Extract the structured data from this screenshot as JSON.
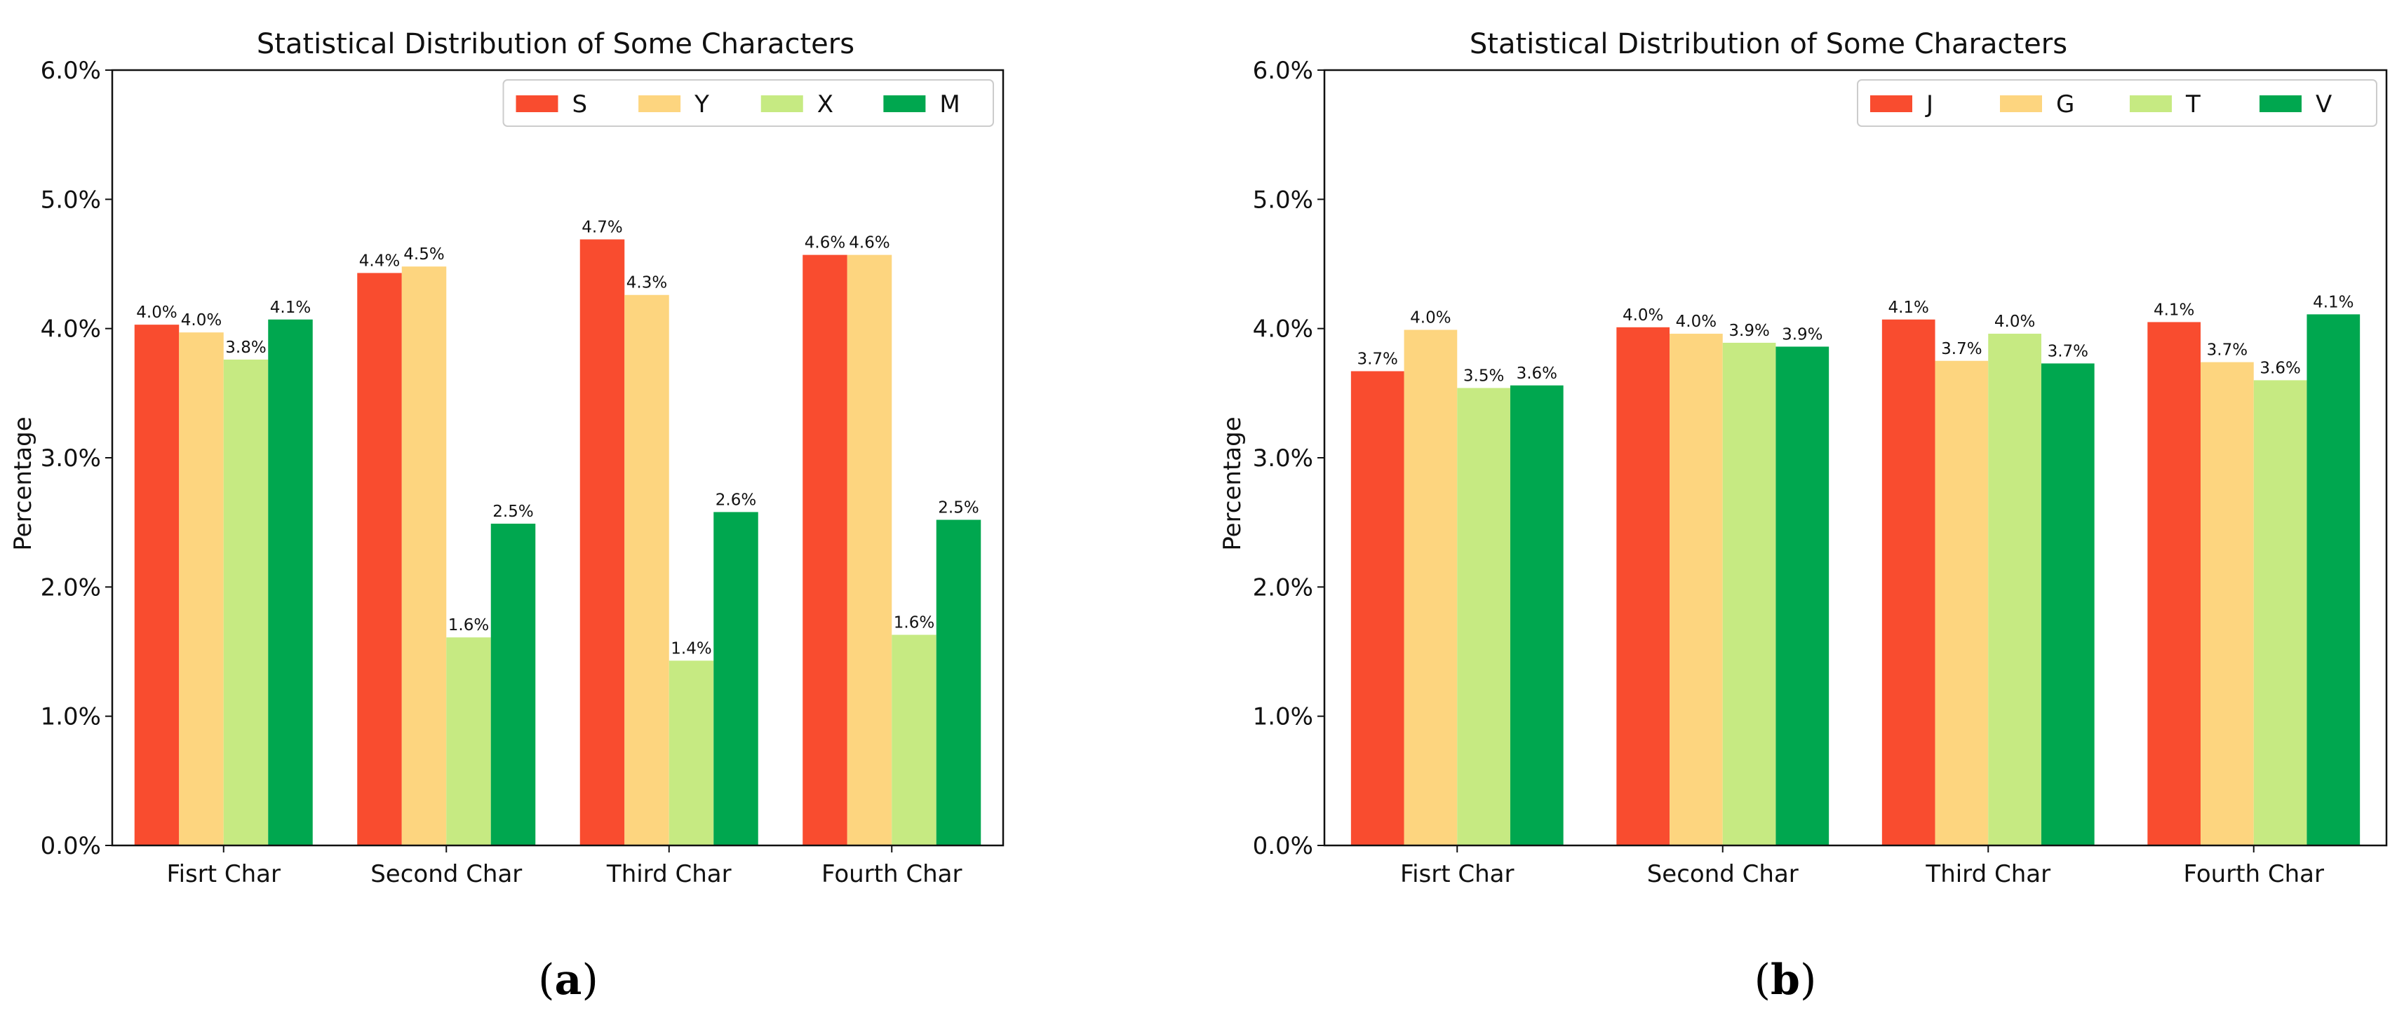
{
  "chart_data": [
    {
      "type": "bar",
      "panel": "a",
      "title": "Statistical Distribution of Some Characters",
      "xlabel": "",
      "ylabel": "Percentage",
      "ylim": [
        0,
        6.0
      ],
      "yticks": [
        "0.0%",
        "1.0%",
        "2.0%",
        "3.0%",
        "4.0%",
        "5.0%",
        "6.0%"
      ],
      "categories": [
        "Fisrt Char",
        "Second Char",
        "Third Char",
        "Fourth Char"
      ],
      "legend_position": "top-right",
      "series": [
        {
          "name": "S",
          "color": "#f94c2f",
          "values": [
            4.03,
            4.43,
            4.69,
            4.57
          ],
          "labels": [
            "4.0%",
            "4.4%",
            "4.7%",
            "4.6%"
          ]
        },
        {
          "name": "Y",
          "color": "#fdd57f",
          "values": [
            3.97,
            4.48,
            4.26,
            4.57
          ],
          "labels": [
            "4.0%",
            "4.5%",
            "4.3%",
            "4.6%"
          ]
        },
        {
          "name": "X",
          "color": "#c6ea82",
          "values": [
            3.76,
            1.61,
            1.43,
            1.63
          ],
          "labels": [
            "3.8%",
            "1.6%",
            "1.4%",
            "1.6%"
          ]
        },
        {
          "name": "M",
          "color": "#00a74f",
          "values": [
            4.07,
            2.49,
            2.58,
            2.52
          ],
          "labels": [
            "4.1%",
            "2.5%",
            "2.6%",
            "2.5%"
          ]
        }
      ]
    },
    {
      "type": "bar",
      "panel": "b",
      "title": "Statistical Distribution of Some Characters",
      "xlabel": "",
      "ylabel": "Percentage",
      "ylim": [
        0,
        6.0
      ],
      "yticks": [
        "0.0%",
        "1.0%",
        "2.0%",
        "3.0%",
        "4.0%",
        "5.0%",
        "6.0%"
      ],
      "categories": [
        "Fisrt Char",
        "Second Char",
        "Third Char",
        "Fourth Char"
      ],
      "legend_position": "top-right",
      "series": [
        {
          "name": "J",
          "color": "#f94c2f",
          "values": [
            3.67,
            4.01,
            4.07,
            4.05
          ],
          "labels": [
            "3.7%",
            "4.0%",
            "4.1%",
            "4.1%"
          ]
        },
        {
          "name": "G",
          "color": "#fdd57f",
          "values": [
            3.99,
            3.96,
            3.75,
            3.74
          ],
          "labels": [
            "4.0%",
            "4.0%",
            "3.7%",
            "3.7%"
          ]
        },
        {
          "name": "T",
          "color": "#c6ea82",
          "values": [
            3.54,
            3.89,
            3.96,
            3.6
          ],
          "labels": [
            "3.5%",
            "3.9%",
            "4.0%",
            "3.6%"
          ]
        },
        {
          "name": "V",
          "color": "#00a74f",
          "values": [
            3.56,
            3.86,
            3.73,
            4.11
          ],
          "labels": [
            "3.6%",
            "3.9%",
            "3.7%",
            "4.1%"
          ]
        }
      ]
    }
  ],
  "captions": {
    "a": {
      "open": "(",
      "letter": "a",
      "close": ")"
    },
    "b": {
      "open": "(",
      "letter": "b",
      "close": ")"
    }
  }
}
